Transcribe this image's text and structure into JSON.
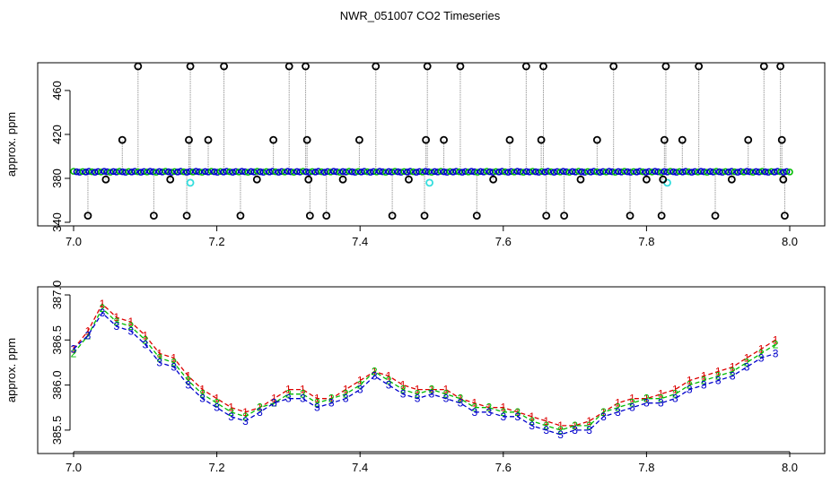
{
  "title": "NWR_051007  CO2 Timeseries",
  "colors": {
    "s1": "#dd0000",
    "s2": "#00bb00",
    "s3": "#0000cc",
    "outlier": "#000000",
    "flag": "#33dddd",
    "line": "#999999"
  },
  "chart_data": [
    {
      "type": "scatter",
      "title": "",
      "xlabel": "",
      "ylabel": "approx. ppm",
      "xlim": [
        7.0,
        8.0
      ],
      "ylim": [
        340,
        482
      ],
      "xticks": [
        "7.0",
        "7.2",
        "7.4",
        "7.6",
        "7.8",
        "8.0"
      ],
      "yticks": [
        "340",
        "380",
        "420",
        "460"
      ],
      "grid": false,
      "baseline": 386,
      "outliers": [
        {
          "x": 7.02,
          "y": 346
        },
        {
          "x": 7.045,
          "y": 379
        },
        {
          "x": 7.068,
          "y": 415
        },
        {
          "x": 7.09,
          "y": 482
        },
        {
          "x": 7.112,
          "y": 346
        },
        {
          "x": 7.135,
          "y": 379
        },
        {
          "x": 7.158,
          "y": 346
        },
        {
          "x": 7.161,
          "y": 415
        },
        {
          "x": 7.163,
          "y": 482
        },
        {
          "x": 7.188,
          "y": 415
        },
        {
          "x": 7.21,
          "y": 482
        },
        {
          "x": 7.233,
          "y": 346
        },
        {
          "x": 7.256,
          "y": 379
        },
        {
          "x": 7.279,
          "y": 415
        },
        {
          "x": 7.301,
          "y": 482
        },
        {
          "x": 7.324,
          "y": 482
        },
        {
          "x": 7.326,
          "y": 415
        },
        {
          "x": 7.328,
          "y": 379
        },
        {
          "x": 7.33,
          "y": 346
        },
        {
          "x": 7.353,
          "y": 346
        },
        {
          "x": 7.376,
          "y": 379
        },
        {
          "x": 7.399,
          "y": 415
        },
        {
          "x": 7.422,
          "y": 482
        },
        {
          "x": 7.445,
          "y": 346
        },
        {
          "x": 7.468,
          "y": 379
        },
        {
          "x": 7.49,
          "y": 346
        },
        {
          "x": 7.492,
          "y": 415
        },
        {
          "x": 7.494,
          "y": 482
        },
        {
          "x": 7.517,
          "y": 415
        },
        {
          "x": 7.54,
          "y": 482
        },
        {
          "x": 7.563,
          "y": 346
        },
        {
          "x": 7.586,
          "y": 379
        },
        {
          "x": 7.609,
          "y": 415
        },
        {
          "x": 7.632,
          "y": 482
        },
        {
          "x": 7.653,
          "y": 415
        },
        {
          "x": 7.656,
          "y": 482
        },
        {
          "x": 7.66,
          "y": 346
        },
        {
          "x": 7.685,
          "y": 346
        },
        {
          "x": 7.708,
          "y": 379
        },
        {
          "x": 7.731,
          "y": 415
        },
        {
          "x": 7.754,
          "y": 482
        },
        {
          "x": 7.777,
          "y": 346
        },
        {
          "x": 7.8,
          "y": 379
        },
        {
          "x": 7.821,
          "y": 346
        },
        {
          "x": 7.823,
          "y": 379
        },
        {
          "x": 7.825,
          "y": 415
        },
        {
          "x": 7.827,
          "y": 482
        },
        {
          "x": 7.85,
          "y": 415
        },
        {
          "x": 7.873,
          "y": 482
        },
        {
          "x": 7.896,
          "y": 346
        },
        {
          "x": 7.919,
          "y": 379
        },
        {
          "x": 7.942,
          "y": 415
        },
        {
          "x": 7.964,
          "y": 482
        },
        {
          "x": 7.987,
          "y": 482
        },
        {
          "x": 7.989,
          "y": 415
        },
        {
          "x": 7.991,
          "y": 379
        },
        {
          "x": 7.993,
          "y": 346
        }
      ],
      "flagged": [
        {
          "x": 7.163,
          "y": 376
        },
        {
          "x": 7.497,
          "y": 376
        },
        {
          "x": 7.829,
          "y": 376
        }
      ]
    },
    {
      "type": "line",
      "title": "",
      "xlabel": "",
      "ylabel": "approx. ppm",
      "xlim": [
        7.0,
        8.0
      ],
      "ylim": [
        385.3,
        387.05
      ],
      "xticks": [
        "7.0",
        "7.2",
        "7.4",
        "7.6",
        "7.8",
        "8.0"
      ],
      "yticks": [
        "385.5",
        "386.0",
        "386.5",
        "387.0"
      ],
      "grid": false,
      "series": [
        {
          "values": [
            [
              7.0,
              386.4
            ],
            [
              7.02,
              386.6
            ],
            [
              7.04,
              386.9
            ],
            [
              7.06,
              386.75
            ],
            [
              7.08,
              386.7
            ],
            [
              7.1,
              386.55
            ],
            [
              7.12,
              386.35
            ],
            [
              7.14,
              386.3
            ],
            [
              7.16,
              386.1
            ],
            [
              7.18,
              385.95
            ],
            [
              7.2,
              385.85
            ],
            [
              7.22,
              385.75
            ],
            [
              7.24,
              385.7
            ],
            [
              7.26,
              385.75
            ],
            [
              7.28,
              385.85
            ],
            [
              7.3,
              385.95
            ],
            [
              7.32,
              385.95
            ],
            [
              7.34,
              385.85
            ],
            [
              7.36,
              385.85
            ],
            [
              7.38,
              385.95
            ],
            [
              7.4,
              386.05
            ],
            [
              7.42,
              386.15
            ],
            [
              7.44,
              386.1
            ],
            [
              7.46,
              386.0
            ],
            [
              7.48,
              385.95
            ],
            [
              7.5,
              385.95
            ],
            [
              7.52,
              385.95
            ],
            [
              7.54,
              385.85
            ],
            [
              7.56,
              385.8
            ],
            [
              7.58,
              385.75
            ],
            [
              7.6,
              385.75
            ],
            [
              7.62,
              385.7
            ],
            [
              7.64,
              385.65
            ],
            [
              7.66,
              385.6
            ],
            [
              7.68,
              385.55
            ],
            [
              7.7,
              385.55
            ],
            [
              7.72,
              385.6
            ],
            [
              7.74,
              385.7
            ],
            [
              7.76,
              385.8
            ],
            [
              7.78,
              385.85
            ],
            [
              7.8,
              385.85
            ],
            [
              7.82,
              385.9
            ],
            [
              7.84,
              385.95
            ],
            [
              7.86,
              386.05
            ],
            [
              7.88,
              386.1
            ],
            [
              7.9,
              386.15
            ],
            [
              7.92,
              386.2
            ],
            [
              7.94,
              386.3
            ],
            [
              7.96,
              386.4
            ],
            [
              7.98,
              386.5
            ]
          ]
        },
        {
          "values": [
            [
              7.0,
              386.35
            ],
            [
              7.02,
              386.55
            ],
            [
              7.04,
              386.85
            ],
            [
              7.06,
              386.7
            ],
            [
              7.08,
              386.65
            ],
            [
              7.1,
              386.5
            ],
            [
              7.12,
              386.3
            ],
            [
              7.14,
              386.25
            ],
            [
              7.16,
              386.05
            ],
            [
              7.18,
              385.9
            ],
            [
              7.2,
              385.8
            ],
            [
              7.22,
              385.7
            ],
            [
              7.24,
              385.65
            ],
            [
              7.26,
              385.75
            ],
            [
              7.28,
              385.8
            ],
            [
              7.3,
              385.9
            ],
            [
              7.32,
              385.9
            ],
            [
              7.34,
              385.8
            ],
            [
              7.36,
              385.85
            ],
            [
              7.38,
              385.9
            ],
            [
              7.4,
              386.0
            ],
            [
              7.42,
              386.15
            ],
            [
              7.44,
              386.05
            ],
            [
              7.46,
              385.95
            ],
            [
              7.48,
              385.9
            ],
            [
              7.5,
              385.95
            ],
            [
              7.52,
              385.9
            ],
            [
              7.54,
              385.85
            ],
            [
              7.56,
              385.75
            ],
            [
              7.58,
              385.75
            ],
            [
              7.6,
              385.7
            ],
            [
              7.62,
              385.7
            ],
            [
              7.64,
              385.6
            ],
            [
              7.66,
              385.55
            ],
            [
              7.68,
              385.5
            ],
            [
              7.7,
              385.55
            ],
            [
              7.72,
              385.55
            ],
            [
              7.74,
              385.7
            ],
            [
              7.76,
              385.75
            ],
            [
              7.78,
              385.8
            ],
            [
              7.8,
              385.85
            ],
            [
              7.82,
              385.85
            ],
            [
              7.84,
              385.9
            ],
            [
              7.86,
              386.0
            ],
            [
              7.88,
              386.05
            ],
            [
              7.9,
              386.1
            ],
            [
              7.92,
              386.15
            ],
            [
              7.94,
              386.25
            ],
            [
              7.96,
              386.35
            ],
            [
              7.98,
              386.45
            ]
          ]
        },
        {
          "values": [
            [
              7.0,
              386.4
            ],
            [
              7.02,
              386.55
            ],
            [
              7.04,
              386.8
            ],
            [
              7.06,
              386.65
            ],
            [
              7.08,
              386.6
            ],
            [
              7.1,
              386.45
            ],
            [
              7.12,
              386.25
            ],
            [
              7.14,
              386.2
            ],
            [
              7.16,
              386.0
            ],
            [
              7.18,
              385.85
            ],
            [
              7.2,
              385.75
            ],
            [
              7.22,
              385.65
            ],
            [
              7.24,
              385.6
            ],
            [
              7.26,
              385.7
            ],
            [
              7.28,
              385.8
            ],
            [
              7.3,
              385.85
            ],
            [
              7.32,
              385.85
            ],
            [
              7.34,
              385.75
            ],
            [
              7.36,
              385.8
            ],
            [
              7.38,
              385.85
            ],
            [
              7.4,
              385.95
            ],
            [
              7.42,
              386.1
            ],
            [
              7.44,
              386.0
            ],
            [
              7.46,
              385.9
            ],
            [
              7.48,
              385.85
            ],
            [
              7.5,
              385.9
            ],
            [
              7.52,
              385.85
            ],
            [
              7.54,
              385.8
            ],
            [
              7.56,
              385.7
            ],
            [
              7.58,
              385.7
            ],
            [
              7.6,
              385.65
            ],
            [
              7.62,
              385.65
            ],
            [
              7.64,
              385.55
            ],
            [
              7.66,
              385.5
            ],
            [
              7.68,
              385.45
            ],
            [
              7.7,
              385.5
            ],
            [
              7.72,
              385.5
            ],
            [
              7.74,
              385.65
            ],
            [
              7.76,
              385.7
            ],
            [
              7.78,
              385.75
            ],
            [
              7.8,
              385.8
            ],
            [
              7.82,
              385.8
            ],
            [
              7.84,
              385.85
            ],
            [
              7.86,
              385.95
            ],
            [
              7.88,
              386.0
            ],
            [
              7.9,
              386.05
            ],
            [
              7.92,
              386.1
            ],
            [
              7.94,
              386.2
            ],
            [
              7.96,
              386.3
            ],
            [
              7.98,
              386.35
            ]
          ]
        }
      ]
    }
  ]
}
